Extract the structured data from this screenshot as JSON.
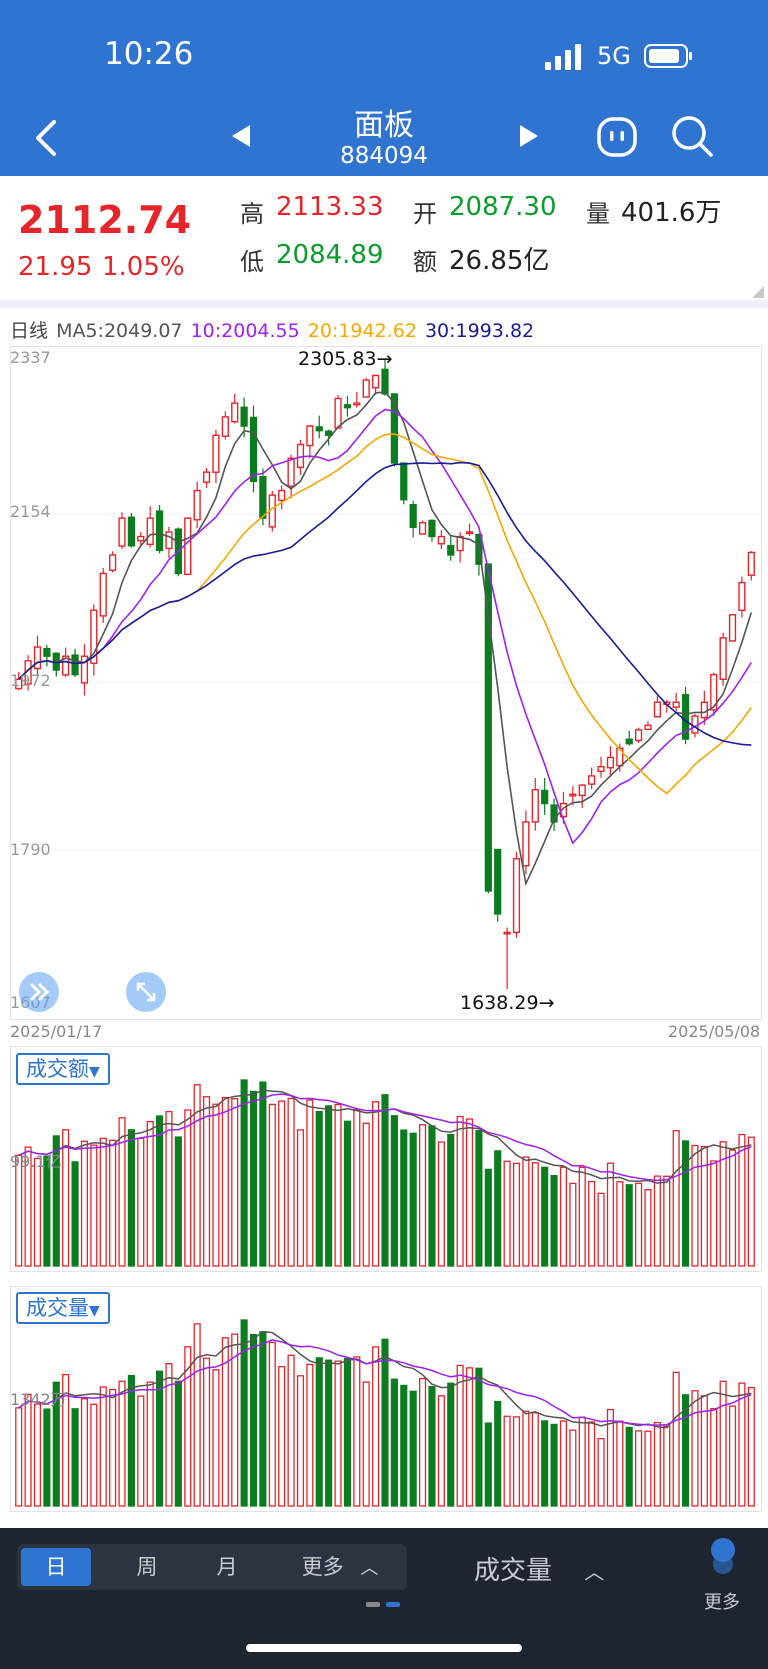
{
  "status": {
    "time": "10:26",
    "network": "5G"
  },
  "nav": {
    "title": "面板",
    "code": "884094"
  },
  "quote": {
    "price": "2112.74",
    "change": "21.95",
    "change_pct": "1.05%",
    "high_label": "高",
    "high": "2113.33",
    "open_label": "开",
    "open": "2087.30",
    "vol_label": "量",
    "vol": "401.6万",
    "low_label": "低",
    "low": "2084.89",
    "amt_label": "额",
    "amt": "26.85亿"
  },
  "ma": {
    "period": "日线",
    "ma5": "MA5:2049.07",
    "ma10": "10:2004.55",
    "ma20": "20:1942.62",
    "ma30": "30:1993.82"
  },
  "colors": {
    "up": "#e5252a",
    "down": "#0b7d1f",
    "ma5": "#555555",
    "ma10": "#a020f0",
    "ma20": "#f5a800",
    "ma30": "#1a1a9c",
    "accent": "#2f74d0"
  },
  "kline": {
    "y_ticks": [
      "2337",
      "2154",
      "1972",
      "1790",
      "1607"
    ],
    "high_mark": "2305.83→",
    "low_mark": "1638.29→",
    "start_date": "2025/01/17",
    "end_date": "2025/05/08"
  },
  "amount_panel": {
    "selector": "成交额",
    "tick": "99.1亿"
  },
  "volume_panel": {
    "selector": "成交量",
    "tick": "1342万"
  },
  "chart_data": {
    "type": "candlestick",
    "x_start": "2025/01/17",
    "x_end": "2025/05/08",
    "ylim": [
      1607,
      2337
    ],
    "close": [
      1975,
      1995,
      2010,
      2000,
      1985,
      2000,
      1980,
      2000,
      2050,
      2090,
      2110,
      2150,
      2120,
      2130,
      2150,
      2115,
      2135,
      2090,
      2150,
      2180,
      2200,
      2240,
      2260,
      2275,
      2250,
      2190,
      2150,
      2175,
      2180,
      2215,
      2230,
      2250,
      2245,
      2240,
      2280,
      2270,
      2275,
      2300,
      2305,
      2285,
      2210,
      2170,
      2140,
      2145,
      2130,
      2130,
      2110,
      2130,
      2135,
      2100,
      1745,
      1720,
      1700,
      1780,
      1820,
      1855,
      1840,
      1820,
      1840,
      1850,
      1860,
      1870,
      1880,
      1890,
      1900,
      1905,
      1920,
      1925,
      1950,
      1950,
      1950,
      1910,
      1935,
      1950,
      1980,
      2020,
      2045,
      2080,
      2112.74
    ],
    "ma_labels": {
      "ma5": "MA5:2049.07",
      "ma10": "10:2004.55",
      "ma20": "20:1942.62",
      "ma30": "30:1993.82"
    },
    "bar_series": [
      {
        "name": "成交额"
      },
      {
        "name": "成交量"
      }
    ]
  },
  "bottom": {
    "periods": [
      "日",
      "周",
      "月",
      "更多"
    ],
    "indicator": "成交量",
    "more": "更多"
  }
}
